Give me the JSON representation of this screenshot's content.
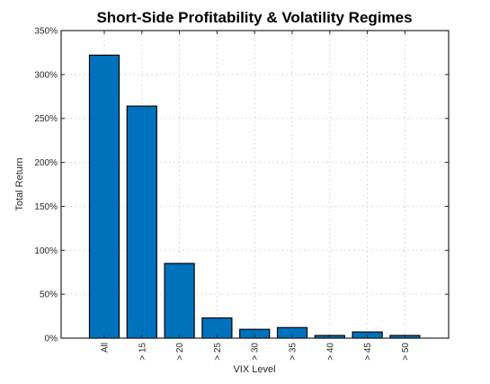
{
  "chart_data": {
    "type": "bar",
    "title": "Short-Side Profitability & Volatility Regimes",
    "xlabel": "VIX Level",
    "ylabel": "Total Return",
    "categories": [
      "All",
      "> 15",
      "> 20",
      "> 25",
      "> 30",
      "> 35",
      "> 40",
      "> 45",
      "> 50"
    ],
    "values": [
      322,
      264,
      85,
      23,
      10,
      12,
      3,
      7,
      3
    ],
    "value_unit": "%",
    "ylim": [
      0,
      350
    ],
    "yticks": [
      0,
      50,
      100,
      150,
      200,
      250,
      300,
      350
    ],
    "ytick_labels": [
      "0%",
      "50%",
      "100%",
      "150%",
      "200%",
      "250%",
      "300%",
      "350%"
    ],
    "grid": true,
    "bar_color": "#0072BD",
    "bar_edge_color": "#000000"
  }
}
